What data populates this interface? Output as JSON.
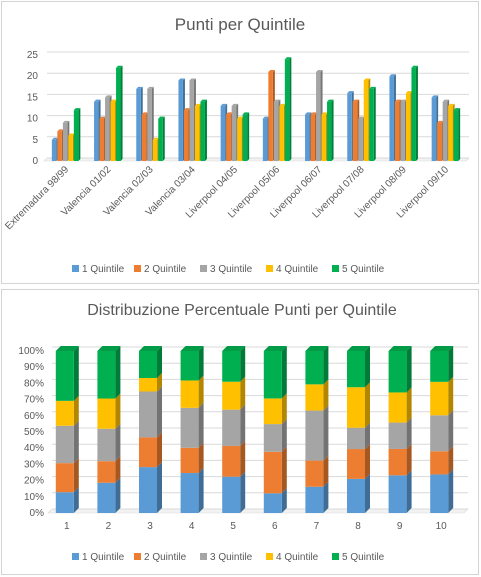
{
  "chart_data": [
    {
      "type": "bar",
      "title": "Punti per Quintile",
      "categories": [
        "Extremadura 98/99",
        "Valencia 01/02",
        "Valencia 02/03",
        "Valencia 03/04",
        "Liverpool 04/05",
        "Liverpool 05/06",
        "Liverpool 06/07",
        "Liverpool 07/08",
        "Liverpool 08/09",
        "Liverpool 09/10"
      ],
      "ylim": [
        0,
        25
      ],
      "yticks": [
        "0",
        "5",
        "10",
        "15",
        "20",
        "25"
      ],
      "grid": true,
      "legend": "bottom",
      "series": [
        {
          "name": "1 Quintile",
          "color": "#5b9bd5",
          "values": [
            5,
            14,
            17,
            19,
            13,
            10,
            11,
            16,
            20,
            15
          ]
        },
        {
          "name": "2 Quintile",
          "color": "#ed7d31",
          "values": [
            7,
            10,
            11,
            12,
            11,
            21,
            11,
            14,
            14,
            9
          ]
        },
        {
          "name": "3 Quintile",
          "color": "#a5a5a5",
          "values": [
            9,
            15,
            17,
            19,
            13,
            14,
            21,
            10,
            14,
            14
          ]
        },
        {
          "name": "4 Quintile",
          "color": "#ffc000",
          "values": [
            6,
            14,
            5,
            13,
            10,
            13,
            11,
            19,
            16,
            13
          ]
        },
        {
          "name": "5 Quintile",
          "color": "#00b050",
          "values": [
            12,
            22,
            10,
            14,
            11,
            24,
            14,
            17,
            22,
            12
          ]
        }
      ]
    },
    {
      "type": "bar",
      "stacked": "percent",
      "title": "Distribuzione Percentuale Punti  per Quintile",
      "categories": [
        "1",
        "2",
        "3",
        "4",
        "5",
        "6",
        "7",
        "8",
        "9",
        "10"
      ],
      "ylim": [
        0,
        100
      ],
      "yticks": [
        "0%",
        "10%",
        "20%",
        "30%",
        "40%",
        "50%",
        "60%",
        "70%",
        "80%",
        "90%",
        "100%"
      ],
      "grid": true,
      "legend": "bottom",
      "series": [
        {
          "name": "1 Quintile",
          "color": "#5b9bd5",
          "values": [
            5,
            14,
            17,
            19,
            13,
            10,
            11,
            16,
            20,
            15
          ]
        },
        {
          "name": "2 Quintile",
          "color": "#ed7d31",
          "values": [
            7,
            10,
            11,
            12,
            11,
            21,
            11,
            14,
            14,
            9
          ]
        },
        {
          "name": "3 Quintile",
          "color": "#a5a5a5",
          "values": [
            9,
            15,
            17,
            19,
            13,
            14,
            21,
            10,
            14,
            14
          ]
        },
        {
          "name": "4 Quintile",
          "color": "#ffc000",
          "values": [
            6,
            14,
            5,
            13,
            10,
            13,
            11,
            19,
            16,
            13
          ]
        },
        {
          "name": "5 Quintile",
          "color": "#00b050",
          "values": [
            12,
            22,
            10,
            14,
            11,
            24,
            14,
            17,
            22,
            12
          ]
        }
      ]
    }
  ]
}
